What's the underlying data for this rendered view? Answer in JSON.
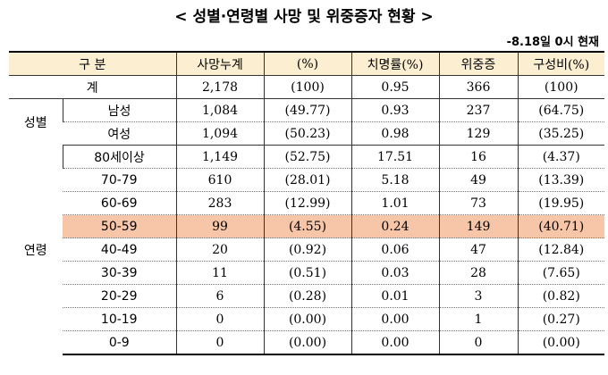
{
  "title": "< 성별·연령별 사망 및 위중증자 현황 >",
  "timestamp": "-8.18일 0시 현재",
  "header": {
    "category": "구 분",
    "deaths": "사망누계",
    "deaths_pct": "(%)",
    "fatality_rate": "치명률(%)",
    "critical": "위중증",
    "composition": "구성비(%)"
  },
  "total": {
    "label": "계",
    "deaths": "2,178",
    "deaths_pct": "(100)",
    "fatality_rate": "0.95",
    "critical": "366",
    "composition": "(100)"
  },
  "sex": {
    "group_label": "성별",
    "rows": [
      {
        "label": "남성",
        "deaths": "1,084",
        "deaths_pct": "(49.77)",
        "fatality_rate": "0.93",
        "critical": "237",
        "composition": "(64.75)"
      },
      {
        "label": "여성",
        "deaths": "1,094",
        "deaths_pct": "(50.23)",
        "fatality_rate": "0.98",
        "critical": "129",
        "composition": "(35.25)"
      }
    ]
  },
  "age": {
    "group_label": "연령",
    "highlight_color": "#f7c6a8",
    "rows": [
      {
        "label": "80세이상",
        "deaths": "1,149",
        "deaths_pct": "(52.75)",
        "fatality_rate": "17.51",
        "critical": "16",
        "composition": "(4.37)"
      },
      {
        "label": "70-79",
        "deaths": "610",
        "deaths_pct": "(28.01)",
        "fatality_rate": "5.18",
        "critical": "49",
        "composition": "(13.39)"
      },
      {
        "label": "60-69",
        "deaths": "283",
        "deaths_pct": "(12.99)",
        "fatality_rate": "1.01",
        "critical": "73",
        "composition": "(19.95)"
      },
      {
        "label": "50-59",
        "deaths": "99",
        "deaths_pct": "(4.55)",
        "fatality_rate": "0.24",
        "critical": "149",
        "composition": "(40.71)"
      },
      {
        "label": "40-49",
        "deaths": "20",
        "deaths_pct": "(0.92)",
        "fatality_rate": "0.06",
        "critical": "47",
        "composition": "(12.84)"
      },
      {
        "label": "30-39",
        "deaths": "11",
        "deaths_pct": "(0.51)",
        "fatality_rate": "0.03",
        "critical": "28",
        "composition": "(7.65)"
      },
      {
        "label": "20-29",
        "deaths": "6",
        "deaths_pct": "(0.28)",
        "fatality_rate": "0.01",
        "critical": "3",
        "composition": "(0.82)"
      },
      {
        "label": "10-19",
        "deaths": "0",
        "deaths_pct": "(0.00)",
        "fatality_rate": "0.00",
        "critical": "1",
        "composition": "(0.27)"
      },
      {
        "label": "0-9",
        "deaths": "0",
        "deaths_pct": "(0.00)",
        "fatality_rate": "0.00",
        "critical": "0",
        "composition": "(0.00)"
      }
    ]
  }
}
